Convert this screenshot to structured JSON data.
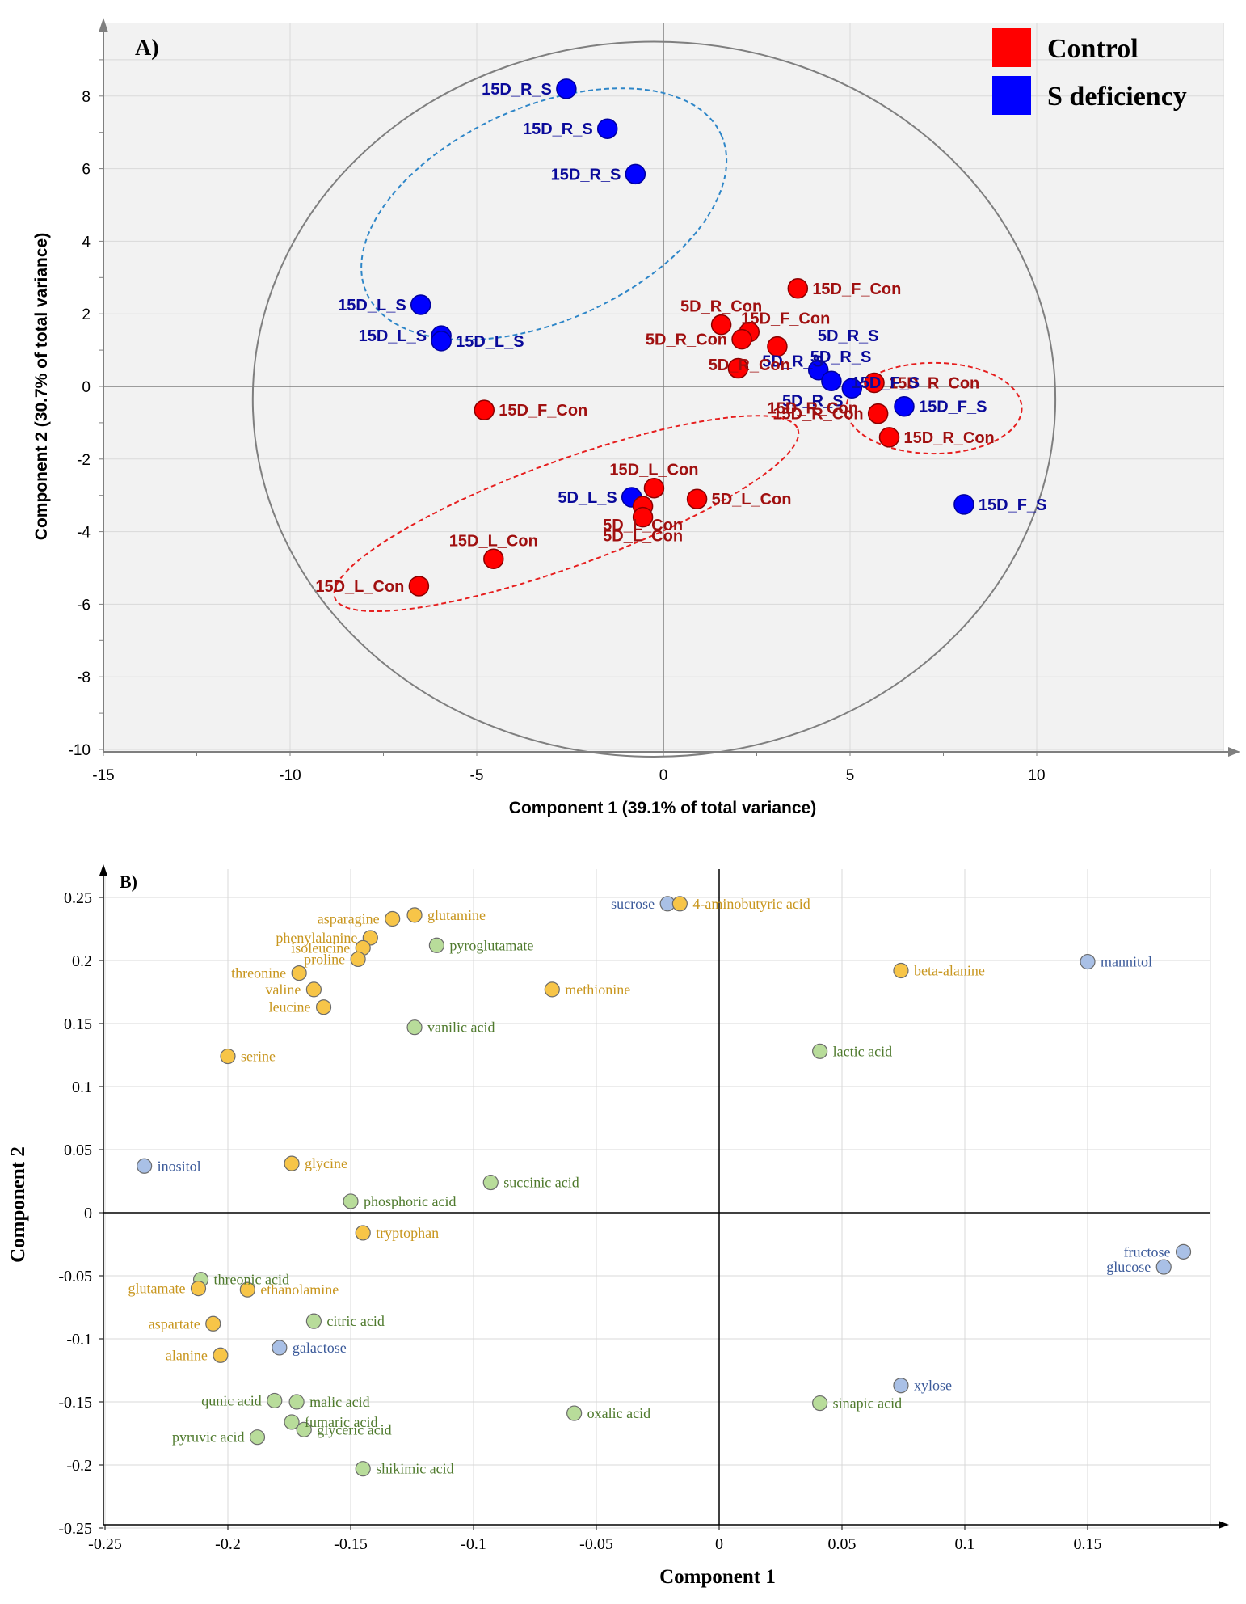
{
  "colors": {
    "control": "#ff0000",
    "control_stroke": "#8b0000",
    "control_label": "#a01010",
    "sdef": "#0000ff",
    "sdef_stroke": "#0000a0",
    "sdef_label": "#0a0a9a",
    "amino": "#f7c548",
    "amino_text": "#c8961e",
    "organic": "#b8dc9a",
    "organic_text": "#4f7a2d",
    "sugar": "#a9c0e6",
    "sugar_text": "#3b5a9a",
    "plot_bg": "#f2f2f2",
    "grid": "#d9d9d9",
    "axis": "#7f7f7f",
    "ellipse_blue": "#2e86c8",
    "ellipse_red": "#e61e1e"
  },
  "chart_data": [
    {
      "panel": "A)",
      "type": "scatter",
      "xlabel": "Component 1 (39.1% of total variance)",
      "ylabel": "Component 2 (30.7% of total variance)",
      "xlim": [
        -15,
        15
      ],
      "ylim": [
        -10,
        9.5
      ],
      "xticks": [
        -15,
        -10,
        -5,
        0,
        5,
        10
      ],
      "yticks": [
        -10,
        -8,
        -6,
        -4,
        -2,
        0,
        2,
        4,
        6,
        8
      ],
      "legend": {
        "position": "top-right",
        "items": [
          {
            "label": "Control",
            "group": "control"
          },
          {
            "label": "S deficiency",
            "group": "sdef"
          }
        ]
      },
      "points": [
        {
          "x": -2.6,
          "y": 8.2,
          "group": "sdef",
          "label": "15D_R_S",
          "pos": "left"
        },
        {
          "x": -1.5,
          "y": 7.1,
          "group": "sdef",
          "label": "15D_R_S",
          "pos": "left"
        },
        {
          "x": -0.75,
          "y": 5.85,
          "group": "sdef",
          "label": "15D_R_S",
          "pos": "left"
        },
        {
          "x": -6.5,
          "y": 2.25,
          "group": "sdef",
          "label": "15D_L_S",
          "pos": "left"
        },
        {
          "x": -5.95,
          "y": 1.4,
          "group": "sdef",
          "label": "15D_L_S",
          "pos": "left"
        },
        {
          "x": -5.95,
          "y": 1.25,
          "group": "sdef",
          "label": "15D_L_S",
          "pos": "right"
        },
        {
          "x": 3.6,
          "y": 2.7,
          "group": "control",
          "label": "15D_F_Con",
          "pos": "right"
        },
        {
          "x": 1.55,
          "y": 1.7,
          "group": "control",
          "label": "5D_R_Con",
          "pos": "above"
        },
        {
          "x": 2.3,
          "y": 1.5,
          "group": "control",
          "label": "15D_F_Con",
          "pos": "above-right"
        },
        {
          "x": 2.1,
          "y": 1.3,
          "group": "control",
          "label": "5D_R_Con",
          "pos": "left"
        },
        {
          "x": 3.05,
          "y": 1.1,
          "group": "control",
          "label": "",
          "pos": "none"
        },
        {
          "x": 4.15,
          "y": 0.45,
          "group": "sdef",
          "label": "5D_R_S",
          "pos": "above-right"
        },
        {
          "x": 4.5,
          "y": 0.15,
          "group": "sdef",
          "label": "5D_R_S",
          "pos": "above-left"
        },
        {
          "x": 5.05,
          "y": -0.05,
          "group": "sdef",
          "label": "",
          "pos": "none"
        },
        {
          "x": 2.0,
          "y": 0.5,
          "group": "control",
          "label": "5D_R_Con",
          "pos": "none"
        },
        {
          "x": 5.65,
          "y": 0.1,
          "group": "control",
          "label": "15D_R_Con",
          "pos": "right"
        },
        {
          "x": 5.75,
          "y": -0.75,
          "group": "control",
          "label": "15D_R_Con",
          "pos": "left"
        },
        {
          "x": 6.45,
          "y": -0.55,
          "group": "sdef",
          "label": "15D_F_S",
          "pos": "right"
        },
        {
          "x": 6.05,
          "y": -1.4,
          "group": "control",
          "label": "15D_R_Con",
          "pos": "right"
        },
        {
          "x": 8.05,
          "y": -3.25,
          "group": "sdef",
          "label": "15D_F_S",
          "pos": "right"
        },
        {
          "x": -4.8,
          "y": -0.65,
          "group": "control",
          "label": "15D_F_Con",
          "pos": "right"
        },
        {
          "x": -0.25,
          "y": -2.8,
          "group": "control",
          "label": "15D_L_Con",
          "pos": "above"
        },
        {
          "x": 0.9,
          "y": -3.1,
          "group": "control",
          "label": "5D_L_Con",
          "pos": "right"
        },
        {
          "x": -0.85,
          "y": -3.05,
          "group": "sdef",
          "label": "5D_L_S",
          "pos": "left"
        },
        {
          "x": -0.55,
          "y": -3.3,
          "group": "control",
          "label": "5D_L_Con",
          "pos": "below"
        },
        {
          "x": -0.55,
          "y": -3.6,
          "group": "control",
          "label": "5D_L_Con",
          "pos": "below"
        },
        {
          "x": -4.55,
          "y": -4.75,
          "group": "control",
          "label": "15D_L_Con",
          "pos": "above"
        },
        {
          "x": -6.55,
          "y": -5.5,
          "group": "control",
          "label": "15D_L_Con",
          "pos": "left"
        }
      ],
      "extra_labels": [
        {
          "text": "5D_R_Con",
          "x": 2.3,
          "y": 0.45,
          "group": "control"
        },
        {
          "text": "5D_R_S",
          "x": 4.0,
          "y": -0.55,
          "group": "sdef"
        },
        {
          "text": "15D_R_Con",
          "x": 4.0,
          "y": -0.75,
          "group": "control"
        },
        {
          "text": "15D_F_S",
          "x": 5.95,
          "y": -0.05,
          "group": "sdef"
        },
        {
          "text": "5D_R_S",
          "x": 4.95,
          "y": 1.25,
          "group": "sdef"
        }
      ],
      "ellipses": [
        {
          "cx": -3.2,
          "cy": 4.75,
          "rx": 5.2,
          "ry": 2.95,
          "angle": -24,
          "style": "ellipse_blue"
        },
        {
          "cx": -2.6,
          "cy": -3.5,
          "rx": 6.6,
          "ry": 1.45,
          "angle": -20,
          "style": "ellipse_red"
        },
        {
          "cx": 7.25,
          "cy": -0.6,
          "rx": 2.35,
          "ry": 1.25,
          "angle": 0,
          "style": "ellipse_red"
        },
        {
          "cx": -0.25,
          "cy": -0.35,
          "rx": 10.75,
          "ry": 9.85,
          "angle": 0,
          "style": "axis"
        }
      ]
    },
    {
      "panel": "B)",
      "type": "scatter",
      "xlabel": "Component 1",
      "ylabel": "Component 2",
      "xlim": [
        -0.25,
        0.2
      ],
      "ylim": [
        -0.25,
        0.27
      ],
      "xticks": [
        -0.25,
        -0.2,
        -0.15,
        -0.1,
        -0.05,
        0,
        0.05,
        0.1,
        0.15
      ],
      "yticks": [
        -0.25,
        -0.2,
        -0.15,
        -0.1,
        -0.05,
        0,
        0.05,
        0.1,
        0.15,
        0.2,
        0.25
      ],
      "xtick_labels": [
        "-0.25",
        "-0.2",
        "-0.15",
        "-0.1",
        "-0.05",
        "0",
        "0.05",
        "0.1",
        "0.15"
      ],
      "ytick_labels": [
        "-0.25",
        "-0.2",
        "-0.15",
        "-0.1",
        "-0.05",
        "0",
        "0.05",
        "0.1",
        "0.15",
        "0.2",
        "0.25"
      ],
      "points": [
        {
          "x": -0.021,
          "y": 0.245,
          "group": "sugar",
          "label": "sucrose",
          "pos": "left"
        },
        {
          "x": -0.016,
          "y": 0.245,
          "group": "amino",
          "label": "4-aminobutyric acid",
          "pos": "right"
        },
        {
          "x": 0.15,
          "y": 0.199,
          "group": "sugar",
          "label": "mannitol",
          "pos": "right"
        },
        {
          "x": 0.074,
          "y": 0.192,
          "group": "amino",
          "label": "beta-alanine",
          "pos": "right"
        },
        {
          "x": -0.133,
          "y": 0.233,
          "group": "amino",
          "label": "asparagine",
          "pos": "left"
        },
        {
          "x": -0.124,
          "y": 0.236,
          "group": "amino",
          "label": "glutamine",
          "pos": "right"
        },
        {
          "x": -0.142,
          "y": 0.218,
          "group": "amino",
          "label": "phenylalanine",
          "pos": "left"
        },
        {
          "x": -0.145,
          "y": 0.21,
          "group": "amino",
          "label": "isoleucine",
          "pos": "left"
        },
        {
          "x": -0.147,
          "y": 0.201,
          "group": "amino",
          "label": "proline",
          "pos": "left"
        },
        {
          "x": -0.115,
          "y": 0.212,
          "group": "organic",
          "label": "pyroglutamate",
          "pos": "right"
        },
        {
          "x": -0.171,
          "y": 0.19,
          "group": "amino",
          "label": "threonine",
          "pos": "left"
        },
        {
          "x": -0.165,
          "y": 0.177,
          "group": "amino",
          "label": "valine",
          "pos": "left"
        },
        {
          "x": -0.161,
          "y": 0.163,
          "group": "amino",
          "label": "leucine",
          "pos": "left"
        },
        {
          "x": -0.068,
          "y": 0.177,
          "group": "amino",
          "label": "methionine",
          "pos": "right"
        },
        {
          "x": -0.124,
          "y": 0.147,
          "group": "organic",
          "label": "vanilic acid",
          "pos": "right"
        },
        {
          "x": 0.041,
          "y": 0.128,
          "group": "organic",
          "label": "lactic acid",
          "pos": "right"
        },
        {
          "x": -0.2,
          "y": 0.124,
          "group": "amino",
          "label": "serine",
          "pos": "right"
        },
        {
          "x": -0.234,
          "y": 0.037,
          "group": "sugar",
          "label": "inositol",
          "pos": "right"
        },
        {
          "x": -0.174,
          "y": 0.039,
          "group": "amino",
          "label": "glycine",
          "pos": "right"
        },
        {
          "x": -0.093,
          "y": 0.024,
          "group": "organic",
          "label": "succinic acid",
          "pos": "right"
        },
        {
          "x": -0.15,
          "y": 0.009,
          "group": "organic",
          "label": "phosphoric acid",
          "pos": "right"
        },
        {
          "x": -0.145,
          "y": -0.016,
          "group": "amino",
          "label": "tryptophan",
          "pos": "right"
        },
        {
          "x": 0.189,
          "y": -0.031,
          "group": "sugar",
          "label": "fructose",
          "pos": "left"
        },
        {
          "x": 0.181,
          "y": -0.043,
          "group": "sugar",
          "label": "glucose",
          "pos": "left"
        },
        {
          "x": -0.211,
          "y": -0.053,
          "group": "organic",
          "label": "threonic acid",
          "pos": "right"
        },
        {
          "x": -0.212,
          "y": -0.06,
          "group": "amino",
          "label": "glutamate",
          "pos": "left"
        },
        {
          "x": -0.192,
          "y": -0.061,
          "group": "amino",
          "label": "ethanolamine",
          "pos": "right"
        },
        {
          "x": -0.206,
          "y": -0.088,
          "group": "amino",
          "label": "aspartate",
          "pos": "left"
        },
        {
          "x": -0.165,
          "y": -0.086,
          "group": "organic",
          "label": "citric acid",
          "pos": "right"
        },
        {
          "x": -0.179,
          "y": -0.107,
          "group": "sugar",
          "label": "galactose",
          "pos": "right"
        },
        {
          "x": -0.203,
          "y": -0.113,
          "group": "amino",
          "label": "alanine",
          "pos": "left"
        },
        {
          "x": 0.074,
          "y": -0.137,
          "group": "sugar",
          "label": "xylose",
          "pos": "right"
        },
        {
          "x": -0.181,
          "y": -0.149,
          "group": "organic",
          "label": "qunic acid",
          "pos": "left"
        },
        {
          "x": -0.172,
          "y": -0.15,
          "group": "organic",
          "label": "malic acid",
          "pos": "right"
        },
        {
          "x": 0.041,
          "y": -0.151,
          "group": "organic",
          "label": "sinapic acid",
          "pos": "right"
        },
        {
          "x": -0.174,
          "y": -0.166,
          "group": "organic",
          "label": "fumaric acid",
          "pos": "right"
        },
        {
          "x": -0.169,
          "y": -0.172,
          "group": "organic",
          "label": "glyceric acid",
          "pos": "right"
        },
        {
          "x": -0.059,
          "y": -0.159,
          "group": "organic",
          "label": "oxalic acid",
          "pos": "right"
        },
        {
          "x": -0.188,
          "y": -0.178,
          "group": "organic",
          "label": "pyruvic acid",
          "pos": "left"
        },
        {
          "x": -0.145,
          "y": -0.203,
          "group": "organic",
          "label": "shikimic acid",
          "pos": "right"
        }
      ]
    }
  ]
}
